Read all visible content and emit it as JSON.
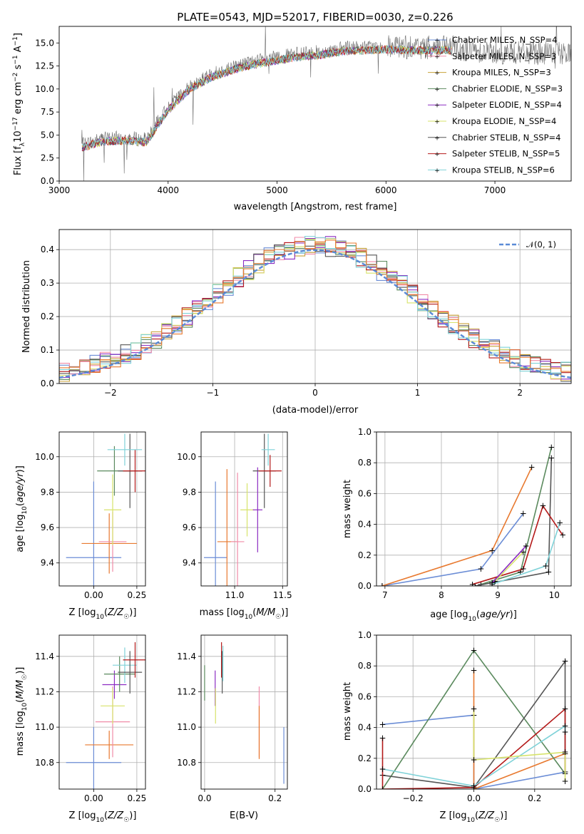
{
  "chart_data": [
    {
      "type": "line",
      "title": "PLATE=0543, MJD=52017, FIBERID=0030, z=0.226",
      "xlabel": "wavelength [Angstrom, rest frame]",
      "ylabel": "Flux [f_λ 10^-17 erg cm^-2 s^-1 A^-1]",
      "xlim": [
        3000,
        7700
      ],
      "ylim": [
        0,
        16.8
      ],
      "xticks": [
        "3000",
        "4000",
        "5000",
        "6000",
        "7000"
      ],
      "yticks": [
        "0.0",
        "2.5",
        "5.0",
        "7.5",
        "10.0",
        "12.5",
        "15.0"
      ],
      "legend_position": "top-right",
      "spectrum_x": [
        3200,
        3400,
        3600,
        3800,
        4000,
        4200,
        4400,
        4600,
        4800,
        5000,
        5200,
        5400,
        5600,
        5800,
        6000,
        6200,
        6400,
        6600,
        6800,
        7000,
        7200,
        7400,
        7600
      ],
      "spectrum_y": [
        3.9,
        4.6,
        4.7,
        4.5,
        8.0,
        10.3,
        11.6,
        12.4,
        13.0,
        13.4,
        13.8,
        14.0,
        14.4,
        14.5,
        14.6,
        14.5,
        14.5,
        14.5,
        14.2,
        14.0,
        13.9,
        13.9,
        13.8
      ],
      "series": [
        {
          "name": "Chabrier MILES, N_SSP=4",
          "color": "#6b8dd6"
        },
        {
          "name": "Salpeter MILES, N_SSP=3",
          "color": "#f08ba8"
        },
        {
          "name": "Kroupa MILES, N_SSP=3",
          "color": "#c8a23a"
        },
        {
          "name": "Chabrier ELODIE, N_SSP=3",
          "color": "#5b8a5e"
        },
        {
          "name": "Salpeter ELODIE, N_SSP=4",
          "color": "#8c2cc2"
        },
        {
          "name": "Kroupa ELODIE, N_SSP=4",
          "color": "#d7e36a"
        },
        {
          "name": "Chabrier STELIB, N_SSP=4",
          "color": "#555555"
        },
        {
          "name": "Salpeter STELIB, N_SSP=5",
          "color": "#b41a1a"
        },
        {
          "name": "Kroupa STELIB, N_SSP=6",
          "color": "#7fd2d8"
        }
      ]
    },
    {
      "type": "line",
      "xlabel": "(data-model)/error",
      "ylabel": "Normed distribution",
      "xlim": [
        -2.5,
        2.5
      ],
      "ylim": [
        0,
        0.46
      ],
      "xticks": [
        "−2",
        "−1",
        "0",
        "1",
        "2"
      ],
      "yticks": [
        "0.0",
        "0.1",
        "0.2",
        "0.3",
        "0.4"
      ],
      "grid": true,
      "legend_position": "top-right",
      "gaussian_label": "𝒩(0, 1)",
      "gaussian_color": "#5b8bd6",
      "histogram_bin_width": 0.1
    },
    {
      "type": "scatter",
      "xlabel": "Z [log10(Z/Z☉)]",
      "ylabel": "age  [log10(age/yr)]",
      "xlim": [
        -0.2,
        0.3
      ],
      "ylim": [
        9.27,
        10.14
      ],
      "xticks": [
        "0.00",
        "0.25"
      ],
      "yticks": [
        "9.4",
        "9.6",
        "9.8",
        "10.0"
      ],
      "points": [
        {
          "x": 0.0,
          "y": 9.43,
          "xerr": 0.16,
          "yerr": 0.43,
          "color": "#6b8dd6"
        },
        {
          "x": 0.09,
          "y": 9.51,
          "xerr": 0.16,
          "yerr": 0.17,
          "color": "#e8792f"
        },
        {
          "x": 0.11,
          "y": 9.52,
          "xerr": 0.08,
          "yerr": 0.17,
          "color": "#f08ba8"
        },
        {
          "x": 0.11,
          "y": 9.7,
          "xerr": 0.05,
          "yerr": 0.2,
          "color": "#d7e36a"
        },
        {
          "x": 0.12,
          "y": 9.92,
          "xerr": 0.1,
          "yerr": 0.14,
          "color": "#5b8a5e"
        },
        {
          "x": 0.21,
          "y": 9.92,
          "xerr": 0.07,
          "yerr": 0.21,
          "color": "#555555"
        },
        {
          "x": 0.24,
          "y": 9.92,
          "xerr": 0.07,
          "yerr": 0.12,
          "color": "#b41a1a"
        },
        {
          "x": 0.18,
          "y": 10.04,
          "xerr": 0.1,
          "yerr": 0.09,
          "color": "#7fd2d8"
        }
      ]
    },
    {
      "type": "scatter",
      "xlabel": "mass [log10(M/M☉)]",
      "xlim": [
        10.65,
        11.55
      ],
      "ylim": [
        9.27,
        10.14
      ],
      "xticks": [
        "11.0",
        "11.5"
      ],
      "yticks": [
        "9.4",
        "9.6",
        "9.8",
        "10.0"
      ],
      "points": [
        {
          "x": 10.8,
          "y": 9.43,
          "xerr": 0.12,
          "yerr": 0.43,
          "color": "#6b8dd6"
        },
        {
          "x": 10.92,
          "y": 9.52,
          "xerr": 0.1,
          "yerr": 0.41,
          "color": "#e8792f"
        },
        {
          "x": 11.03,
          "y": 9.52,
          "xerr": 0.07,
          "yerr": 0.39,
          "color": "#f08ba8"
        },
        {
          "x": 11.13,
          "y": 9.7,
          "xerr": 0.07,
          "yerr": 0.15,
          "color": "#d7e36a"
        },
        {
          "x": 11.24,
          "y": 9.7,
          "xerr": 0.05,
          "yerr": 0.24,
          "color": "#8c2cc2"
        },
        {
          "x": 11.31,
          "y": 9.92,
          "xerr": 0.12,
          "yerr": 0.21,
          "color": "#555555"
        },
        {
          "x": 11.37,
          "y": 9.92,
          "xerr": 0.12,
          "yerr": 0.09,
          "color": "#b41a1a"
        },
        {
          "x": 11.35,
          "y": 10.04,
          "xerr": 0.07,
          "yerr": 0.09,
          "color": "#7fd2d8"
        }
      ]
    },
    {
      "type": "line",
      "xlabel": "age  [log10(age/yr)]",
      "ylabel": "mass weight",
      "xlim": [
        6.85,
        10.3
      ],
      "ylim": [
        0,
        1.0
      ],
      "xticks": [
        "7",
        "8",
        "9",
        "10"
      ],
      "yticks": [
        "0.0",
        "0.2",
        "0.4",
        "0.6",
        "0.8",
        "1.0"
      ],
      "grid": true,
      "series": [
        {
          "color": "#6b8dd6",
          "x": [
            6.95,
            8.7,
            9.45
          ],
          "y": [
            0.0,
            0.11,
            0.47
          ]
        },
        {
          "color": "#e8792f",
          "x": [
            6.95,
            8.9,
            9.6
          ],
          "y": [
            0.0,
            0.23,
            0.77
          ]
        },
        {
          "color": "#5b8a5e",
          "x": [
            8.7,
            9.4,
            9.95
          ],
          "y": [
            0.01,
            0.09,
            0.9
          ]
        },
        {
          "color": "#555555",
          "x": [
            8.6,
            9.9,
            9.95
          ],
          "y": [
            0.0,
            0.09,
            0.83
          ]
        },
        {
          "color": "#b41a1a",
          "x": [
            8.55,
            9.45,
            9.8,
            10.15
          ],
          "y": [
            0.01,
            0.11,
            0.52,
            0.33
          ]
        },
        {
          "color": "#7fd2d8",
          "x": [
            8.9,
            9.85,
            10.1
          ],
          "y": [
            0.01,
            0.13,
            0.41
          ]
        },
        {
          "color": "#d7e36a",
          "x": [
            8.95,
            9.45
          ],
          "y": [
            0.03,
            0.22
          ]
        },
        {
          "color": "#8c2cc2",
          "x": [
            8.9,
            9.5
          ],
          "y": [
            0.02,
            0.26
          ]
        }
      ]
    },
    {
      "type": "scatter",
      "xlabel": "Z [log10(Z/Z☉)]",
      "ylabel": "mass [log10(M/M☉)]",
      "xlim": [
        -0.2,
        0.3
      ],
      "ylim": [
        10.65,
        11.52
      ],
      "xticks": [
        "0.00",
        "0.25"
      ],
      "yticks": [
        "10.8",
        "11.0",
        "11.2",
        "11.4"
      ],
      "points": [
        {
          "x": 0.0,
          "y": 10.8,
          "xerr": 0.16,
          "yerr": 0.2,
          "color": "#6b8dd6"
        },
        {
          "x": 0.09,
          "y": 10.9,
          "xerr": 0.14,
          "yerr": 0.08,
          "color": "#e8792f"
        },
        {
          "x": 0.11,
          "y": 11.03,
          "xerr": 0.1,
          "yerr": 0.2,
          "color": "#f08ba8"
        },
        {
          "x": 0.11,
          "y": 11.12,
          "xerr": 0.07,
          "yerr": 0.1,
          "color": "#d7e36a"
        },
        {
          "x": 0.12,
          "y": 11.24,
          "xerr": 0.07,
          "yerr": 0.08,
          "color": "#8c2cc2"
        },
        {
          "x": 0.15,
          "y": 11.3,
          "xerr": 0.09,
          "yerr": 0.1,
          "color": "#5b8a5e"
        },
        {
          "x": 0.18,
          "y": 11.35,
          "xerr": 0.07,
          "yerr": 0.1,
          "color": "#7fd2d8"
        },
        {
          "x": 0.21,
          "y": 11.31,
          "xerr": 0.07,
          "yerr": 0.12,
          "color": "#555555"
        },
        {
          "x": 0.24,
          "y": 11.38,
          "xerr": 0.07,
          "yerr": 0.1,
          "color": "#b41a1a"
        }
      ]
    },
    {
      "type": "scatter",
      "xlabel": "E(B-V)",
      "xlim": [
        -0.01,
        0.235
      ],
      "ylim": [
        10.65,
        11.52
      ],
      "xticks": [
        "0.0",
        "0.2"
      ],
      "yticks": [
        "10.8",
        "11.0",
        "11.2",
        "11.4"
      ],
      "points": [
        {
          "x": 0.0,
          "y": 11.25,
          "yerr": 0.1,
          "color": "#5b8a5e"
        },
        {
          "x": 0.03,
          "y": 11.22,
          "yerr": 0.1,
          "color": "#8c2cc2"
        },
        {
          "x": 0.031,
          "y": 11.12,
          "yerr": 0.1,
          "color": "#d7e36a"
        },
        {
          "x": 0.048,
          "y": 11.38,
          "yerr": 0.1,
          "color": "#b41a1a"
        },
        {
          "x": 0.05,
          "y": 11.31,
          "yerr": 0.12,
          "color": "#555555"
        },
        {
          "x": 0.052,
          "y": 11.36,
          "yerr": 0.1,
          "color": "#7fd2d8"
        },
        {
          "x": 0.155,
          "y": 11.03,
          "yerr": 0.2,
          "color": "#f08ba8"
        },
        {
          "x": 0.155,
          "y": 10.97,
          "yerr": 0.15,
          "color": "#e8792f"
        },
        {
          "x": 0.225,
          "y": 10.84,
          "yerr": 0.16,
          "color": "#6b8dd6"
        }
      ]
    },
    {
      "type": "line",
      "xlabel": "Z [log10(Z/Z☉)]",
      "ylabel": "mass weight",
      "xlim": [
        -0.32,
        0.32
      ],
      "ylim": [
        0,
        1.0
      ],
      "xticks": [
        "−0.2",
        "0.0",
        "0.2"
      ],
      "yticks": [
        "0.0",
        "0.2",
        "0.4",
        "0.6",
        "0.8",
        "1.0"
      ],
      "grid": true,
      "series": [
        {
          "color": "#6b8dd6",
          "x": [
            -0.3,
            0.0,
            0.0,
            0.3
          ],
          "y": [
            0.42,
            0.48,
            0.0,
            0.11
          ]
        },
        {
          "color": "#e8792f",
          "x": [
            0.0,
            0.0,
            0.3
          ],
          "y": [
            0.77,
            0.0,
            0.23
          ]
        },
        {
          "color": "#5b8a5e",
          "x": [
            -0.3,
            0.0,
            0.3
          ],
          "y": [
            0.0,
            0.9,
            0.1
          ]
        },
        {
          "color": "#555555",
          "x": [
            -0.3,
            0.0,
            0.3,
            0.3
          ],
          "y": [
            0.09,
            0.01,
            0.83,
            0.11
          ]
        },
        {
          "color": "#b41a1a",
          "x": [
            -0.3,
            -0.3,
            0.0,
            0.3,
            0.3
          ],
          "y": [
            0.33,
            0.0,
            0.01,
            0.52,
            0.11
          ]
        },
        {
          "color": "#7fd2d8",
          "x": [
            -0.3,
            0.0,
            0.3,
            0.3
          ],
          "y": [
            0.13,
            0.02,
            0.41,
            0.37
          ]
        },
        {
          "color": "#d7e36a",
          "x": [
            0.0,
            0.0,
            0.3,
            0.3
          ],
          "y": [
            0.52,
            0.19,
            0.24,
            0.05
          ]
        }
      ]
    }
  ]
}
